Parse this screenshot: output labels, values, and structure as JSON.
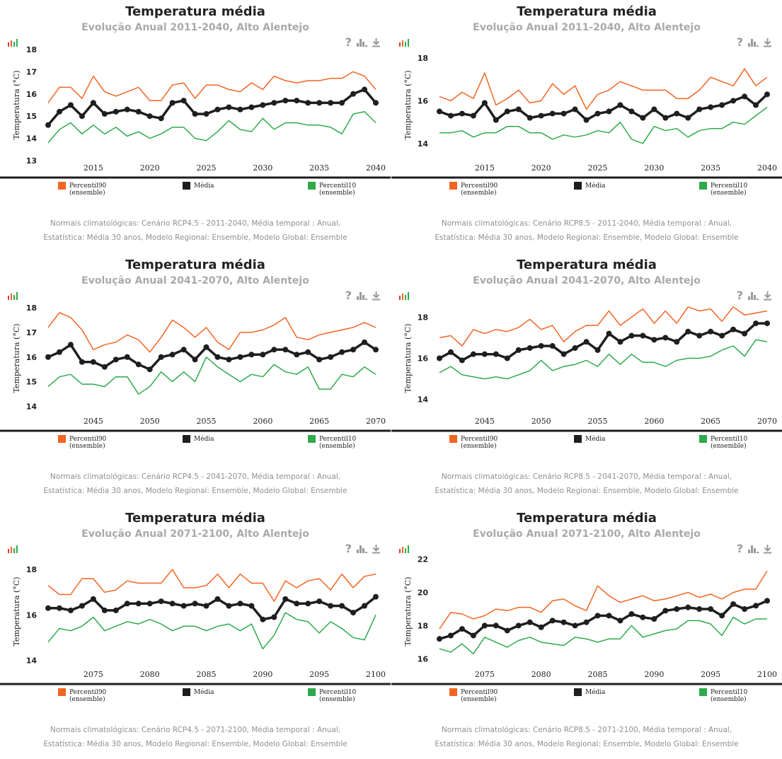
{
  "icons": {
    "help": "?",
    "chart": "bar-chart-icon",
    "download": "download-icon"
  },
  "colors": {
    "p90": "#f26522",
    "media": "#1e1e1e",
    "p10": "#2eaa4a"
  },
  "legend": {
    "p90_line1": "Percentil90",
    "p90_line2": "(ensemble)",
    "media": "Média",
    "p10_line1": "Percentil10",
    "p10_line2": "(ensemble)"
  },
  "panels": [
    {
      "title": "Temperatura média",
      "subtitle": "Evolução Anual 2011-2040, Alto Alentejo",
      "caption_line1": "Normais climatológicas: Cenário RCP4.5 - 2011-2040, Média temporal : Anual,",
      "caption_line2": "Estatística: Média 30 anos, Modelo Regional: Ensemble, Modelo Global: Ensemble",
      "chart_data": {
        "type": "line",
        "ylabel": "Temperatura (°C)",
        "xlim": [
          2011,
          2040
        ],
        "ylim": [
          13,
          18
        ],
        "yticks": [
          13,
          14,
          15,
          16,
          17,
          18
        ],
        "xticks": [
          2015,
          2020,
          2025,
          2030,
          2035,
          2040
        ],
        "grid": false,
        "legend": "bottom",
        "x_start": 2011,
        "series": [
          {
            "name": "Percentil90 (ensemble)",
            "values": [
              15.6,
              16.3,
              16.3,
              15.8,
              16.8,
              16.1,
              15.9,
              16.1,
              16.3,
              15.7,
              15.7,
              16.4,
              16.5,
              15.8,
              16.4,
              16.4,
              16.2,
              16.1,
              16.5,
              16.2,
              16.8,
              16.6,
              16.5,
              16.6,
              16.6,
              16.7,
              16.7,
              17.0,
              16.8,
              16.2
            ]
          },
          {
            "name": "Média",
            "values": [
              14.6,
              15.2,
              15.5,
              15.0,
              15.6,
              15.1,
              15.2,
              15.3,
              15.2,
              15.0,
              14.9,
              15.6,
              15.7,
              15.1,
              15.1,
              15.3,
              15.4,
              15.3,
              15.4,
              15.5,
              15.6,
              15.7,
              15.7,
              15.6,
              15.6,
              15.6,
              15.6,
              16.0,
              16.2,
              15.6
            ]
          },
          {
            "name": "Percentil10 (ensemble)",
            "values": [
              13.8,
              14.4,
              14.7,
              14.2,
              14.6,
              14.2,
              14.5,
              14.1,
              14.3,
              14.0,
              14.2,
              14.5,
              14.5,
              14.0,
              13.9,
              14.3,
              14.8,
              14.4,
              14.3,
              14.9,
              14.4,
              14.7,
              14.7,
              14.6,
              14.6,
              14.5,
              14.2,
              15.1,
              15.2,
              14.7
            ]
          }
        ]
      }
    },
    {
      "title": "Temperatura média",
      "subtitle": "Evolução Anual 2011-2040, Alto Alentejo",
      "caption_line1": "Normais climatológicas: Cenário RCP8.5 - 2011-2040, Média temporal : Anual,",
      "caption_line2": "Estatística: Média 30 anos, Modelo Regional: Ensemble, Modelo Global: Ensemble",
      "chart_data": {
        "type": "line",
        "ylabel": "Temperatura (°C)",
        "xlim": [
          2011,
          2040
        ],
        "ylim": [
          13.2,
          18.4
        ],
        "yticks": [
          14,
          16,
          18
        ],
        "xticks": [
          2015,
          2020,
          2025,
          2030,
          2035,
          2040
        ],
        "grid": false,
        "legend": "bottom",
        "x_start": 2011,
        "series": [
          {
            "name": "Percentil90 (ensemble)",
            "values": [
              16.2,
              16.0,
              16.4,
              16.1,
              17.3,
              15.8,
              16.1,
              16.5,
              15.9,
              16.0,
              16.8,
              16.3,
              16.7,
              15.6,
              16.3,
              16.5,
              16.9,
              16.7,
              16.5,
              16.5,
              16.5,
              16.1,
              16.1,
              16.5,
              17.1,
              16.9,
              16.7,
              17.5,
              16.7,
              17.1
            ]
          },
          {
            "name": "Média",
            "values": [
              15.5,
              15.3,
              15.4,
              15.3,
              15.9,
              15.1,
              15.5,
              15.6,
              15.2,
              15.3,
              15.4,
              15.4,
              15.6,
              15.1,
              15.4,
              15.5,
              15.8,
              15.5,
              15.2,
              15.6,
              15.2,
              15.4,
              15.2,
              15.6,
              15.7,
              15.8,
              16.0,
              16.2,
              15.8,
              16.3
            ]
          },
          {
            "name": "Percentil10 (ensemble)",
            "values": [
              14.5,
              14.5,
              14.6,
              14.3,
              14.5,
              14.5,
              14.8,
              14.8,
              14.5,
              14.5,
              14.2,
              14.4,
              14.3,
              14.4,
              14.6,
              14.5,
              15.0,
              14.2,
              14.0,
              14.8,
              14.6,
              14.7,
              14.3,
              14.6,
              14.7,
              14.7,
              15.0,
              14.9,
              15.3,
              15.7
            ]
          }
        ]
      }
    },
    {
      "title": "Temperatura média",
      "subtitle": "Evolução Anual 2041-2070, Alto Alentejo",
      "caption_line1": "Normais climatológicas: Cenário RCP4.5 - 2041-2070, Média temporal : Anual,",
      "caption_line2": "Estatística: Média 30 anos, Modelo Regional: Ensemble, Modelo Global: Ensemble",
      "chart_data": {
        "type": "line",
        "ylabel": "Temperatura (°C)",
        "xlim": [
          2041,
          2070
        ],
        "ylim": [
          13.7,
          18.2
        ],
        "yticks": [
          14,
          15,
          16,
          17,
          18
        ],
        "xticks": [
          2045,
          2050,
          2055,
          2060,
          2065,
          2070
        ],
        "grid": false,
        "legend": "bottom",
        "x_start": 2041,
        "series": [
          {
            "name": "Percentil90 (ensemble)",
            "values": [
              17.2,
              17.8,
              17.6,
              17.1,
              16.3,
              16.5,
              16.6,
              16.9,
              16.7,
              16.2,
              16.8,
              17.5,
              17.2,
              16.8,
              17.2,
              16.6,
              16.3,
              17.0,
              17.0,
              17.1,
              17.3,
              17.6,
              16.8,
              16.7,
              16.9,
              17.0,
              17.1,
              17.2,
              17.4,
              17.2
            ]
          },
          {
            "name": "Média",
            "values": [
              16.0,
              16.2,
              16.5,
              15.8,
              15.8,
              15.6,
              15.9,
              16.0,
              15.7,
              15.5,
              16.0,
              16.1,
              16.3,
              15.9,
              16.4,
              16.0,
              15.9,
              16.0,
              16.1,
              16.1,
              16.3,
              16.3,
              16.1,
              16.2,
              15.9,
              16.0,
              16.2,
              16.3,
              16.6,
              16.3
            ]
          },
          {
            "name": "Percentil10 (ensemble)",
            "values": [
              14.8,
              15.2,
              15.3,
              14.9,
              14.9,
              14.8,
              15.2,
              15.2,
              14.5,
              14.8,
              15.4,
              15.0,
              15.4,
              15.0,
              16.0,
              15.6,
              15.3,
              15.0,
              15.3,
              15.2,
              15.7,
              15.4,
              15.3,
              15.6,
              14.7,
              14.7,
              15.3,
              15.2,
              15.6,
              15.3
            ]
          }
        ]
      }
    },
    {
      "title": "Temperatura média",
      "subtitle": "Evolução Anual 2041-2070, Alto Alentejo",
      "caption_line1": "Normais climatológicas: Cenário RCP8.5 - 2041-2070, Média temporal : Anual,",
      "caption_line2": "Estatística: Média 30 anos, Modelo Regional: Ensemble, Modelo Global: Ensemble",
      "chart_data": {
        "type": "line",
        "ylabel": "Temperatura (°C)",
        "xlim": [
          2041,
          2070
        ],
        "ylim": [
          13.3,
          18.7
        ],
        "yticks": [
          14,
          16,
          18
        ],
        "xticks": [
          2045,
          2050,
          2055,
          2060,
          2065,
          2070
        ],
        "grid": false,
        "legend": "bottom",
        "x_start": 2041,
        "series": [
          {
            "name": "Percentil90 (ensemble)",
            "values": [
              17.0,
              17.1,
              16.6,
              17.4,
              17.2,
              17.4,
              17.3,
              17.5,
              17.9,
              17.4,
              17.6,
              16.8,
              17.3,
              17.6,
              17.6,
              18.3,
              17.6,
              18.0,
              18.4,
              17.7,
              18.3,
              17.7,
              18.5,
              18.3,
              18.4,
              17.8,
              18.5,
              18.1,
              18.2,
              18.3
            ]
          },
          {
            "name": "Média",
            "values": [
              16.0,
              16.3,
              15.9,
              16.2,
              16.2,
              16.2,
              16.0,
              16.4,
              16.5,
              16.6,
              16.6,
              16.2,
              16.5,
              16.8,
              16.4,
              17.2,
              16.8,
              17.1,
              17.1,
              16.9,
              17.0,
              16.8,
              17.3,
              17.1,
              17.3,
              17.1,
              17.4,
              17.2,
              17.7,
              17.7
            ]
          },
          {
            "name": "Percentil10 (ensemble)",
            "values": [
              15.3,
              15.6,
              15.2,
              15.1,
              15.0,
              15.1,
              15.0,
              15.2,
              15.4,
              15.9,
              15.4,
              15.6,
              15.7,
              15.9,
              15.6,
              16.2,
              15.7,
              16.2,
              15.8,
              15.8,
              15.6,
              15.9,
              16.0,
              16.0,
              16.1,
              16.4,
              16.6,
              16.1,
              16.9,
              16.8
            ]
          }
        ]
      }
    },
    {
      "title": "Temperatura média",
      "subtitle": "Evolução Anual 2071-2100, Alto Alentejo",
      "caption_line1": "Normais climatológicas: Cenário RCP4.5 - 2071-2100, Média temporal : Anual,",
      "caption_line2": "Estatística: Média 30 anos, Modelo Regional: Ensemble, Modelo Global: Ensemble",
      "chart_data": {
        "type": "line",
        "ylabel": "Temperatura (°C)",
        "xlim": [
          2071,
          2100
        ],
        "ylim": [
          13.7,
          18.6
        ],
        "yticks": [
          14,
          16,
          18
        ],
        "xticks": [
          2075,
          2080,
          2085,
          2090,
          2095,
          2100
        ],
        "grid": false,
        "legend": "bottom",
        "x_start": 2071,
        "series": [
          {
            "name": "Percentil90 (ensemble)",
            "values": [
              17.3,
              16.9,
              16.9,
              17.6,
              17.6,
              17.0,
              17.1,
              17.5,
              17.4,
              17.4,
              17.4,
              18.0,
              17.2,
              17.2,
              17.3,
              17.8,
              17.2,
              17.8,
              17.4,
              17.4,
              16.6,
              17.5,
              17.2,
              17.5,
              17.6,
              17.1,
              17.8,
              17.2,
              17.7,
              17.8
            ]
          },
          {
            "name": "Média",
            "values": [
              16.3,
              16.3,
              16.2,
              16.4,
              16.7,
              16.2,
              16.2,
              16.5,
              16.5,
              16.5,
              16.6,
              16.5,
              16.4,
              16.5,
              16.4,
              16.7,
              16.4,
              16.5,
              16.4,
              15.8,
              15.9,
              16.7,
              16.5,
              16.5,
              16.6,
              16.4,
              16.4,
              16.1,
              16.4,
              16.8
            ]
          },
          {
            "name": "Percentil10 (ensemble)",
            "values": [
              14.8,
              15.4,
              15.3,
              15.5,
              15.9,
              15.3,
              15.5,
              15.7,
              15.6,
              15.8,
              15.6,
              15.3,
              15.5,
              15.5,
              15.3,
              15.5,
              15.6,
              15.3,
              15.6,
              14.5,
              15.1,
              16.1,
              15.8,
              15.7,
              15.2,
              15.7,
              15.4,
              15.0,
              14.9,
              16.0
            ]
          }
        ]
      }
    },
    {
      "title": "Temperatura média",
      "subtitle": "Evolução Anual 2071-2100, Alto Alentejo",
      "caption_line1": "Normais climatológicas: Cenário RCP8.5 - 2071-2100, Média temporal : Anual,",
      "caption_line2": "Estatística: Média 30 anos, Modelo Regional: Ensemble, Modelo Global: Ensemble",
      "chart_data": {
        "type": "line",
        "ylabel": "Temperatura (°C)",
        "xlim": [
          2071,
          2100
        ],
        "ylim": [
          15.5,
          22.2
        ],
        "yticks": [
          16,
          18,
          20,
          22
        ],
        "xticks": [
          2075,
          2080,
          2085,
          2090,
          2095,
          2100
        ],
        "grid": false,
        "legend": "bottom",
        "x_start": 2071,
        "series": [
          {
            "name": "Percentil90 (ensemble)",
            "values": [
              17.8,
              18.8,
              18.7,
              18.4,
              18.6,
              19.0,
              18.9,
              19.1,
              19.1,
              18.8,
              19.5,
              19.6,
              19.2,
              18.9,
              20.4,
              19.8,
              19.4,
              19.6,
              19.8,
              19.5,
              19.6,
              19.8,
              20.0,
              19.7,
              19.9,
              19.6,
              20.0,
              20.2,
              20.2,
              21.3
            ]
          },
          {
            "name": "Média",
            "values": [
              17.2,
              17.4,
              17.8,
              17.4,
              18.0,
              18.0,
              17.7,
              18.0,
              18.2,
              17.9,
              18.3,
              18.2,
              18.0,
              18.2,
              18.6,
              18.6,
              18.3,
              18.7,
              18.5,
              18.4,
              18.9,
              19.0,
              19.1,
              19.0,
              19.0,
              18.6,
              19.3,
              19.0,
              19.2,
              19.5
            ]
          },
          {
            "name": "Percentil10 (ensemble)",
            "values": [
              16.6,
              16.4,
              16.9,
              16.3,
              17.3,
              17.0,
              16.7,
              17.1,
              17.3,
              17.0,
              16.9,
              16.8,
              17.3,
              17.2,
              17.0,
              17.2,
              17.2,
              18.0,
              17.3,
              17.5,
              17.7,
              17.8,
              18.3,
              18.3,
              18.1,
              17.4,
              18.5,
              18.1,
              18.4,
              18.4
            ]
          }
        ]
      }
    }
  ]
}
